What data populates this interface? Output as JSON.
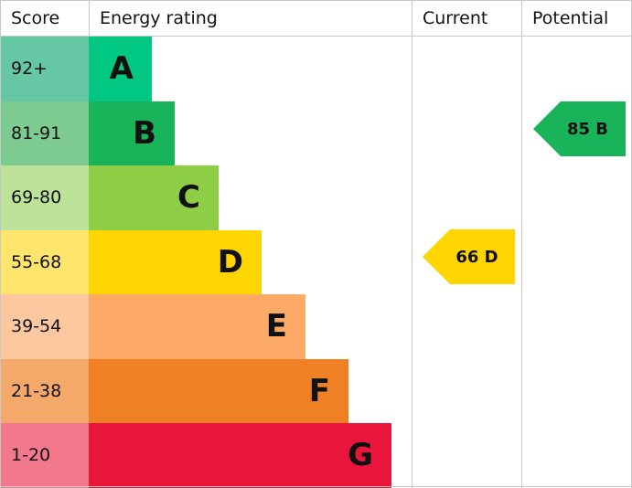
{
  "header": {
    "score": "Score",
    "rating": "Energy rating",
    "current": "Current",
    "potential": "Potential"
  },
  "bands": [
    {
      "score": "92+",
      "letter": "A"
    },
    {
      "score": "81-91",
      "letter": "B"
    },
    {
      "score": "69-80",
      "letter": "C"
    },
    {
      "score": "55-68",
      "letter": "D"
    },
    {
      "score": "39-54",
      "letter": "E"
    },
    {
      "score": "21-38",
      "letter": "F"
    },
    {
      "score": "1-20",
      "letter": "G"
    }
  ],
  "current": {
    "label": "66 D"
  },
  "potential": {
    "label": "85 B"
  }
}
